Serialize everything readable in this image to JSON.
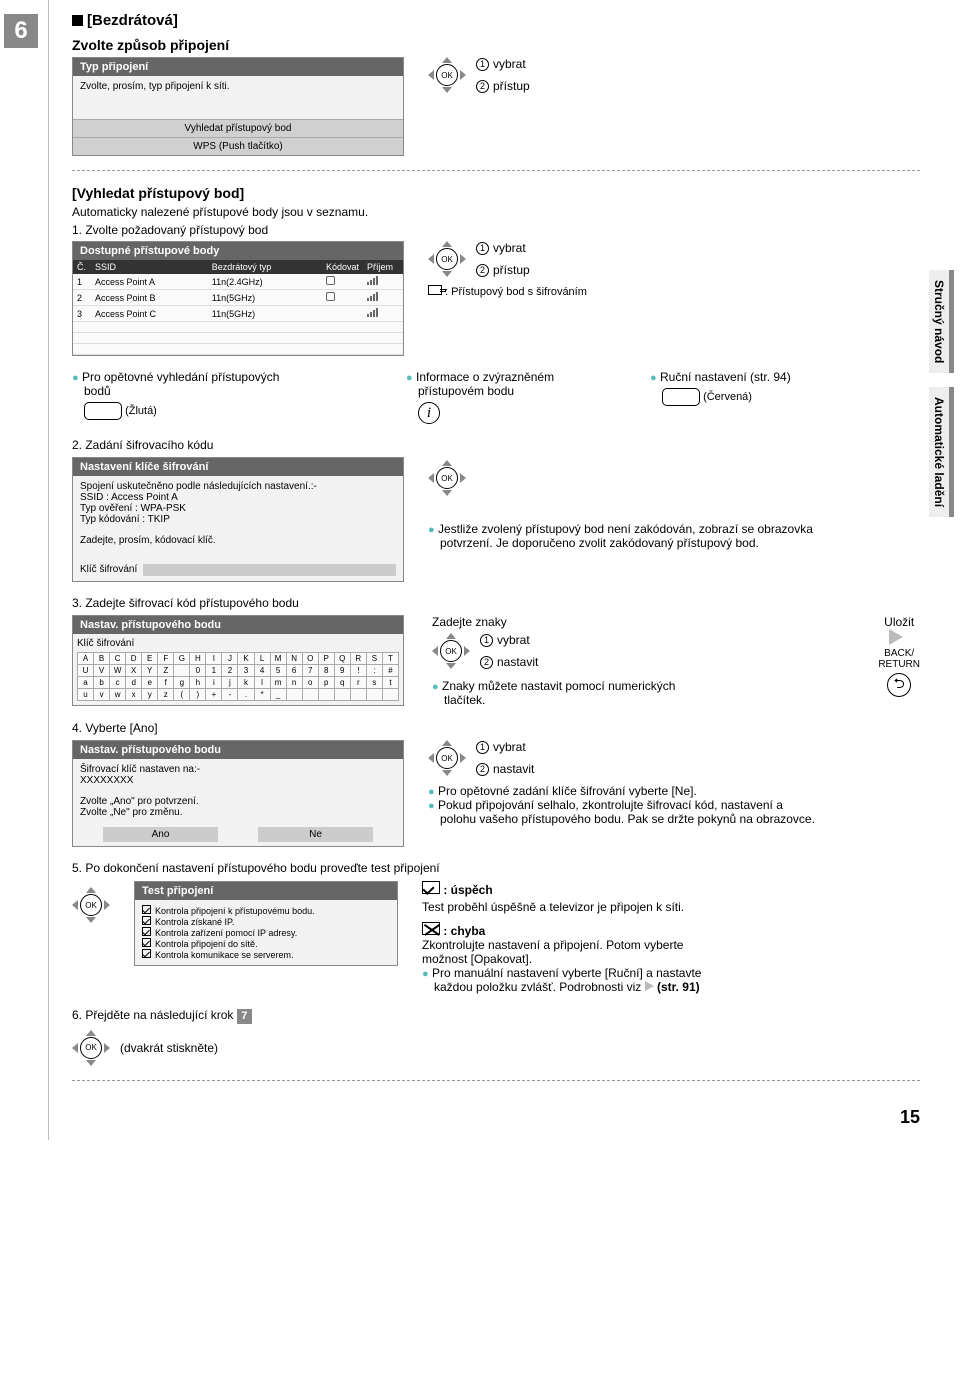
{
  "step_number": "6",
  "section_title": "[Bezdrátová]",
  "choose_heading": "Zvolte způsob připojení",
  "conn_panel": {
    "hdr": "Typ připojení",
    "body": "Zvolte, prosím, typ připojení k síti.",
    "opt1": "Vyhledat přístupový bod",
    "opt2": "WPS (Push tlačítko)"
  },
  "nav": {
    "select": "vybrat",
    "access": "přístup",
    "set": "nastavit"
  },
  "find_ap": {
    "hdr": "[Vyhledat přístupový bod]",
    "sub": "Automaticky nalezené přístupové body jsou v seznamu.",
    "step1": "1. Zvolte požadovaný přístupový bod"
  },
  "ap_table": {
    "hdr": "Dostupné přístupové body",
    "cols": {
      "no": "Č.",
      "ssid": "SSID",
      "type": "Bezdrátový typ",
      "code": "Kódovat",
      "recv": "Příjem"
    },
    "rows": [
      {
        "n": "1",
        "s": "Access Point A",
        "t": "11n(2.4GHz)",
        "lock": true
      },
      {
        "n": "2",
        "s": "Access Point B",
        "t": "11n(5GHz)",
        "lock": true
      },
      {
        "n": "3",
        "s": "Access Point C",
        "t": "11n(5GHz)",
        "lock": false
      }
    ]
  },
  "encrypted_note": ": Přístupový bod s šifrováním",
  "research": {
    "t1": "Pro opětovné vyhledání přístupových",
    "t2": "bodů",
    "yellow": "(Žlutá)"
  },
  "info_ap": {
    "t1": "Informace o zvýrazněném",
    "t2": "přístupovém bodu"
  },
  "manual": {
    "t": "Ruční nastavení (str. 94)",
    "red": "(Červená)"
  },
  "step2": "2. Zadání šifrovacího kódu",
  "key_panel": {
    "hdr": "Nastavení klíče šifrování",
    "l1": "Spojení uskutečněno podle následujících nastavení.:-",
    "l2": "SSID : Access Point A",
    "l3": "Typ ověření : WPA-PSK",
    "l4": "Typ kódování : TKIP",
    "l5": "Zadejte, prosím, kódovací klíč.",
    "l6": "Klíč šifrování"
  },
  "encode_note": {
    "t1": "Jestliže zvolený přístupový bod není zakódován, zobrazí se obrazovka",
    "t2": "potvrzení. Je doporučeno zvolit zakódovaný přístupový bod."
  },
  "step3": "3. Zadejte šifrovací kód přístupového bodu",
  "kb_panel": {
    "hdr": "Nastav. přístupového bodu",
    "sub": "Klíč šifrování"
  },
  "kb_rows": [
    [
      "A",
      "B",
      "C",
      "D",
      "E",
      "F",
      "G",
      "H",
      "I",
      "J",
      "K",
      "L",
      "M",
      "N",
      "O",
      "P",
      "Q",
      "R",
      "S",
      "T"
    ],
    [
      "U",
      "V",
      "W",
      "X",
      "Y",
      "Z",
      "",
      "0",
      "1",
      "2",
      "3",
      "4",
      "5",
      "6",
      "7",
      "8",
      "9",
      "!",
      ":",
      "#"
    ],
    [
      "a",
      "b",
      "c",
      "d",
      "e",
      "f",
      "g",
      "h",
      "i",
      "j",
      "k",
      "l",
      "m",
      "n",
      "o",
      "p",
      "q",
      "r",
      "s",
      "t"
    ],
    [
      "u",
      "v",
      "w",
      "x",
      "y",
      "z",
      "(",
      ")",
      "+",
      "-",
      ".",
      "*",
      "_",
      "",
      "",
      "",
      "",
      "",
      "",
      ""
    ]
  ],
  "enter_chars": "Zadejte znaky",
  "save": "Uložit",
  "back": "BACK/\nRETURN",
  "numeric_note": {
    "t1": "Znaky můžete nastavit pomocí numerických",
    "t2": "tlačítek."
  },
  "step4": "4. Vyberte [Ano]",
  "confirm_panel": {
    "hdr": "Nastav. přístupového bodu",
    "l1": "Šifrovací klíč nastaven na:-",
    "l2": "XXXXXXXX",
    "l3": "Zvolte „Ano\" pro potvrzení.",
    "l4": "Zvolte „Ne\" pro změnu.",
    "yes": "Ano",
    "no": "Ne"
  },
  "after_confirm": {
    "l1": "Pro opětovné zadání klíče šifrování vyberte [Ne].",
    "l2": "Pokud připojování selhalo, zkontrolujte šifrovací kód, nastavení a",
    "l3": "polohu vašeho přístupového bodu. Pak se držte pokynů na obrazovce."
  },
  "step5": "5. Po dokončení nastavení přístupového bodu proveďte test připojení",
  "test_panel": {
    "hdr": "Test připojení",
    "i1": "Kontrola připojení k přístupovému bodu.",
    "i2": "Kontrola získané IP.",
    "i3": "Kontrola zařízení pomocí IP adresy.",
    "i4": "Kontrola připojení do sítě.",
    "i5": "Kontrola komunikace se serverem."
  },
  "result": {
    "ok": ": úspěch",
    "ok_t": "Test proběhl úspěšně a televizor je připojen k síti.",
    "err": ": chyba",
    "err_t1": "Zkontrolujte nastavení a připojení. Potom vyberte",
    "err_t2": "možnost [Opakovat].",
    "err_t3": "Pro manuální nastavení vyberte [Ruční] a nastavte",
    "err_t4": "každou položku zvlášť. Podrobnosti viz",
    "err_t5": "(str. 91)"
  },
  "step6": "6. Přejděte na následující krok",
  "next_step": "7",
  "twice": "(dvakrát stiskněte)",
  "side": {
    "t1": "Stručný návod",
    "t2": "Automatické ladění"
  },
  "page": "15"
}
